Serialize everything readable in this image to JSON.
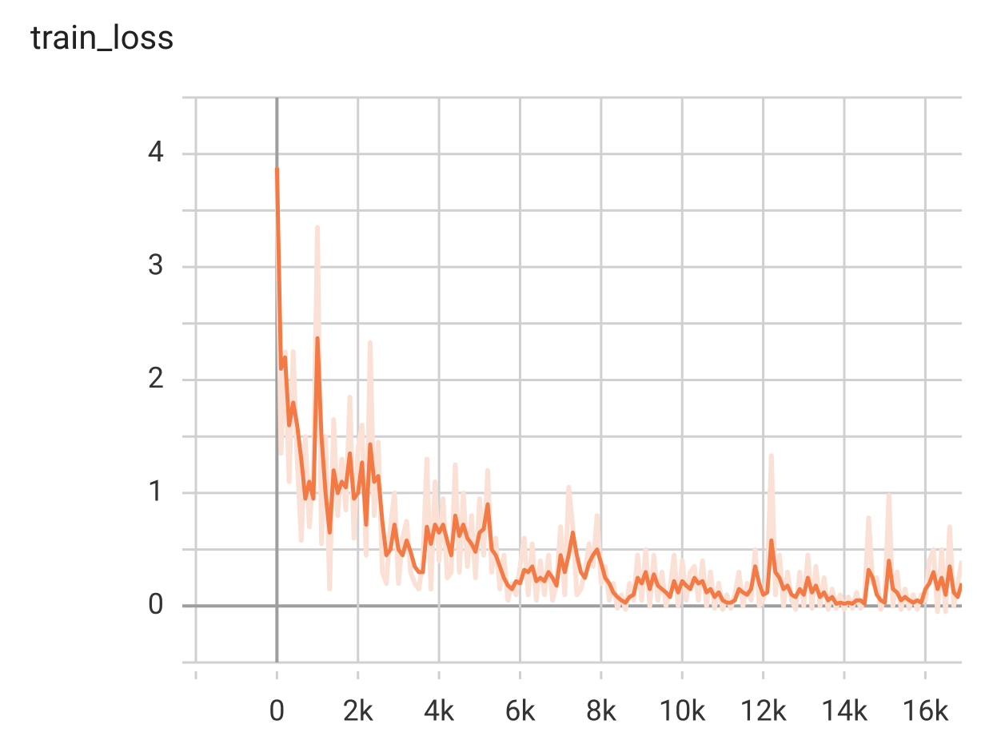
{
  "chart_data": {
    "type": "line",
    "title": "train_loss",
    "xlim": [
      -2000,
      16900
    ],
    "ylim": [
      -0.5,
      4.5
    ],
    "xticks": [
      0,
      {
        "value": 2000,
        "label": "2k"
      },
      {
        "value": 4000,
        "label": "4k"
      },
      {
        "value": 6000,
        "label": "6k"
      },
      {
        "value": 8000,
        "label": "8k"
      },
      {
        "value": 10000,
        "label": "10k"
      },
      {
        "value": 12000,
        "label": "12k"
      },
      {
        "value": 14000,
        "label": "14k"
      },
      {
        "value": 16000,
        "label": "16k"
      }
    ],
    "x_minor_ticks": [
      -2000
    ],
    "yticks": [
      0,
      1,
      2,
      3,
      4
    ],
    "y_minor_ticks": [
      -0.5,
      0.5,
      1.5,
      2.5,
      3.5,
      4.5
    ],
    "grid": true,
    "x": [
      0,
      100,
      200,
      300,
      400,
      500,
      600,
      700,
      800,
      900,
      1000,
      1100,
      1200,
      1300,
      1400,
      1500,
      1600,
      1700,
      1800,
      1900,
      2000,
      2100,
      2200,
      2300,
      2400,
      2500,
      2600,
      2700,
      2800,
      2900,
      3000,
      3100,
      3200,
      3300,
      3400,
      3500,
      3600,
      3700,
      3800,
      3900,
      4000,
      4100,
      4200,
      4300,
      4400,
      4500,
      4600,
      4700,
      4800,
      4900,
      5000,
      5100,
      5200,
      5300,
      5400,
      5500,
      5600,
      5700,
      5800,
      5900,
      6000,
      6100,
      6200,
      6300,
      6400,
      6500,
      6600,
      6700,
      6800,
      6900,
      7000,
      7100,
      7200,
      7300,
      7400,
      7500,
      7600,
      7700,
      7800,
      7900,
      8000,
      8100,
      8200,
      8300,
      8400,
      8500,
      8600,
      8700,
      8800,
      8900,
      9000,
      9100,
      9200,
      9300,
      9400,
      9500,
      9600,
      9700,
      9800,
      9900,
      10000,
      10100,
      10200,
      10300,
      10400,
      10500,
      10600,
      10700,
      10800,
      10900,
      11000,
      11100,
      11200,
      11300,
      11400,
      11500,
      11600,
      11700,
      11800,
      11900,
      12000,
      12100,
      12200,
      12300,
      12400,
      12500,
      12600,
      12700,
      12800,
      12900,
      13000,
      13100,
      13200,
      13300,
      13400,
      13500,
      13600,
      13700,
      13800,
      13900,
      14000,
      14100,
      14200,
      14300,
      14400,
      14500,
      14600,
      14700,
      14800,
      14900,
      15000,
      15100,
      15200,
      15300,
      15400,
      15500,
      15600,
      15700,
      15800,
      15900,
      16000,
      16100,
      16200,
      16300,
      16400,
      16500,
      16600,
      16700,
      16800,
      16900
    ],
    "series": [
      {
        "color": "#fbe0d5",
        "width": 6,
        "values": [
          3.88,
          1.35,
          2.25,
          1.1,
          2.25,
          1.3,
          0.58,
          1.5,
          0.7,
          1.2,
          3.35,
          0.55,
          1.5,
          0.15,
          1.65,
          0.8,
          1.3,
          0.85,
          1.85,
          0.6,
          1.4,
          1.6,
          0.45,
          2.33,
          0.8,
          1.45,
          0.3,
          0.2,
          0.7,
          1.0,
          0.2,
          0.6,
          0.75,
          0.3,
          0.2,
          0.15,
          0.4,
          1.3,
          0.15,
          1.1,
          0.4,
          0.95,
          0.25,
          0.3,
          1.25,
          0.3,
          1.0,
          0.35,
          0.8,
          0.25,
          0.95,
          0.45,
          1.2,
          0.3,
          0.6,
          0.15,
          0.45,
          0.05,
          0.2,
          0.1,
          0.35,
          0.6,
          0.1,
          0.55,
          0.05,
          0.4,
          0.1,
          0.45,
          0.05,
          0.2,
          0.7,
          0.1,
          1.05,
          0.7,
          0.1,
          0.15,
          0.3,
          0.55,
          0.35,
          0.8,
          0.2,
          0.35,
          0.05,
          0.2,
          -0.02,
          0.1,
          -0.03,
          0.2,
          0.05,
          0.45,
          0.05,
          0.5,
          0.0,
          0.45,
          0.05,
          0.3,
          0.0,
          0.15,
          0.45,
          0.0,
          0.4,
          0.05,
          0.3,
          0.35,
          0.05,
          0.4,
          0.0,
          0.3,
          -0.02,
          0.2,
          -0.03,
          0.1,
          -0.02,
          0.1,
          0.3,
          0.0,
          0.2,
          0.05,
          0.5,
          0.0,
          0.05,
          0.25,
          1.33,
          0.1,
          0.45,
          0.0,
          0.3,
          0.05,
          -0.03,
          0.3,
          0.0,
          0.45,
          -0.02,
          0.35,
          0.0,
          0.25,
          -0.03,
          0.15,
          -0.02,
          0.1,
          -0.03,
          0.08,
          -0.02,
          0.12,
          -0.02,
          0.05,
          0.78,
          0.2,
          0.25,
          -0.03,
          0.08,
          0.98,
          0.0,
          0.3,
          -0.03,
          0.15,
          -0.02,
          0.1,
          -0.03,
          0.1,
          0.05,
          0.4,
          0.5,
          -0.05,
          0.5,
          -0.05,
          0.7,
          0.0,
          0.2,
          0.4
        ]
      },
      {
        "color": "#f47a45",
        "width": 5,
        "values": [
          3.88,
          2.1,
          2.2,
          1.6,
          1.8,
          1.6,
          1.3,
          0.95,
          1.1,
          0.95,
          2.37,
          1.5,
          1.0,
          0.65,
          1.2,
          1.0,
          1.1,
          1.05,
          1.35,
          0.95,
          1.0,
          1.27,
          0.72,
          1.43,
          1.1,
          1.15,
          0.75,
          0.45,
          0.5,
          0.72,
          0.5,
          0.45,
          0.58,
          0.48,
          0.35,
          0.3,
          0.3,
          0.7,
          0.55,
          0.72,
          0.65,
          0.72,
          0.58,
          0.45,
          0.8,
          0.62,
          0.72,
          0.6,
          0.55,
          0.48,
          0.65,
          0.68,
          0.9,
          0.5,
          0.45,
          0.35,
          0.25,
          0.18,
          0.15,
          0.22,
          0.2,
          0.32,
          0.3,
          0.35,
          0.22,
          0.25,
          0.22,
          0.3,
          0.25,
          0.18,
          0.45,
          0.3,
          0.45,
          0.65,
          0.45,
          0.3,
          0.25,
          0.38,
          0.45,
          0.5,
          0.38,
          0.25,
          0.2,
          0.12,
          0.08,
          0.05,
          0.03,
          0.08,
          0.1,
          0.25,
          0.2,
          0.3,
          0.15,
          0.28,
          0.18,
          0.15,
          0.12,
          0.08,
          0.22,
          0.12,
          0.22,
          0.18,
          0.15,
          0.25,
          0.2,
          0.22,
          0.12,
          0.15,
          0.08,
          0.12,
          0.05,
          0.03,
          0.03,
          0.05,
          0.15,
          0.12,
          0.1,
          0.15,
          0.35,
          0.2,
          0.1,
          0.12,
          0.58,
          0.3,
          0.25,
          0.15,
          0.18,
          0.1,
          0.08,
          0.15,
          0.1,
          0.25,
          0.12,
          0.18,
          0.08,
          0.12,
          0.05,
          0.08,
          0.02,
          0.03,
          0.02,
          0.03,
          0.02,
          0.05,
          0.05,
          0.02,
          0.32,
          0.25,
          0.1,
          0.05,
          0.03,
          0.4,
          0.15,
          0.12,
          0.05,
          0.08,
          0.05,
          0.03,
          0.05,
          0.03,
          0.15,
          0.2,
          0.3,
          0.15,
          0.25,
          0.1,
          0.35,
          0.12,
          0.08,
          0.2
        ]
      }
    ]
  }
}
